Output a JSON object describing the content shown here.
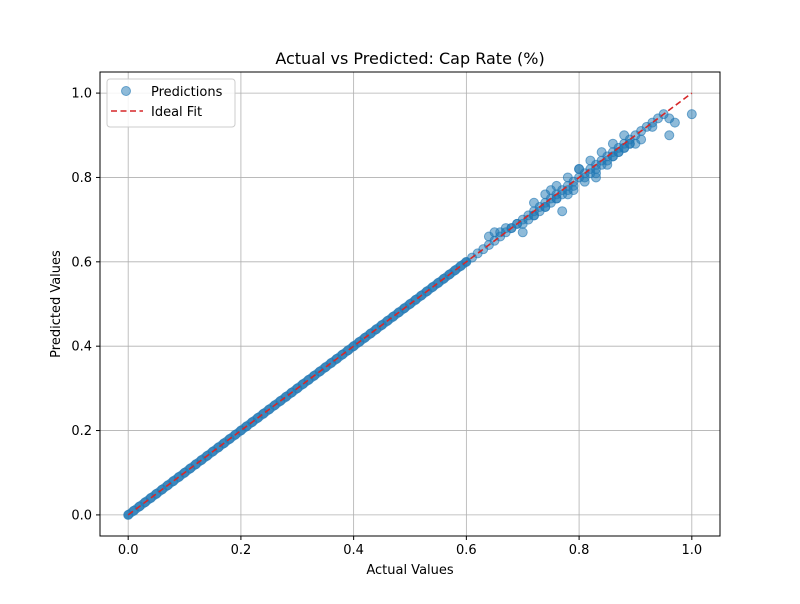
{
  "chart_data": {
    "type": "scatter",
    "title": "Actual vs Predicted: Cap Rate (%)",
    "xlabel": "Actual Values",
    "ylabel": "Predicted Values",
    "xlim": [
      -0.05,
      1.05
    ],
    "ylim": [
      -0.05,
      1.05
    ],
    "xticks": [
      0.0,
      0.2,
      0.4,
      0.6,
      0.8,
      1.0
    ],
    "yticks": [
      0.0,
      0.2,
      0.4,
      0.6,
      0.8,
      1.0
    ],
    "xtick_labels": [
      "0.0",
      "0.2",
      "0.4",
      "0.6",
      "0.8",
      "1.0"
    ],
    "ytick_labels": [
      "0.0",
      "0.2",
      "0.4",
      "0.6",
      "0.8",
      "1.0"
    ],
    "grid": true,
    "legend_position": "top-left",
    "colors": {
      "points": "#1f77b4",
      "ideal_fit": "#d62728",
      "grid": "#b0b0b0",
      "axes": "#000000"
    },
    "series": [
      {
        "name": "Predictions",
        "kind": "scatter",
        "x": [
          0.0,
          0.01,
          0.02,
          0.03,
          0.04,
          0.05,
          0.06,
          0.07,
          0.08,
          0.09,
          0.1,
          0.11,
          0.12,
          0.13,
          0.14,
          0.15,
          0.16,
          0.17,
          0.18,
          0.19,
          0.2,
          0.21,
          0.22,
          0.23,
          0.24,
          0.25,
          0.26,
          0.27,
          0.28,
          0.29,
          0.3,
          0.31,
          0.32,
          0.33,
          0.34,
          0.35,
          0.36,
          0.37,
          0.38,
          0.39,
          0.4,
          0.41,
          0.42,
          0.43,
          0.44,
          0.45,
          0.46,
          0.47,
          0.48,
          0.49,
          0.5,
          0.51,
          0.52,
          0.53,
          0.54,
          0.55,
          0.56,
          0.57,
          0.58,
          0.59,
          0.6,
          0.61,
          0.62,
          0.63,
          0.64,
          0.65,
          0.66,
          0.67,
          0.68,
          0.69,
          0.7,
          0.71,
          0.72,
          0.73,
          0.74,
          0.75,
          0.76,
          0.77,
          0.78,
          0.79,
          0.8,
          0.81,
          0.82,
          0.83,
          0.84,
          0.85,
          0.86,
          0.87,
          0.88,
          0.89,
          0.9,
          0.91,
          0.92,
          0.93,
          0.94,
          0.96,
          0.97,
          1.0,
          0.64,
          0.65,
          0.66,
          0.67,
          0.68,
          0.69,
          0.7,
          0.71,
          0.72,
          0.73,
          0.74,
          0.75,
          0.76,
          0.77,
          0.78,
          0.79,
          0.81,
          0.82,
          0.83,
          0.84,
          0.85,
          0.86,
          0.87,
          0.88,
          0.89,
          0.72,
          0.74,
          0.76,
          0.78,
          0.8,
          0.82,
          0.84,
          0.86,
          0.88,
          0.7,
          0.72,
          0.74,
          0.76,
          0.77,
          0.79,
          0.81,
          0.83,
          0.85,
          0.87,
          0.89,
          0.75,
          0.78,
          0.8,
          0.83,
          0.86,
          0.88,
          0.9,
          0.91,
          0.93,
          0.95,
          0.96
        ],
        "y": [
          0.0,
          0.01,
          0.02,
          0.03,
          0.04,
          0.05,
          0.06,
          0.07,
          0.08,
          0.09,
          0.1,
          0.11,
          0.12,
          0.13,
          0.14,
          0.15,
          0.16,
          0.17,
          0.18,
          0.19,
          0.2,
          0.21,
          0.22,
          0.23,
          0.24,
          0.25,
          0.26,
          0.27,
          0.28,
          0.29,
          0.3,
          0.31,
          0.32,
          0.33,
          0.34,
          0.35,
          0.36,
          0.37,
          0.38,
          0.39,
          0.4,
          0.41,
          0.42,
          0.43,
          0.44,
          0.45,
          0.46,
          0.47,
          0.48,
          0.49,
          0.5,
          0.51,
          0.52,
          0.53,
          0.54,
          0.55,
          0.56,
          0.57,
          0.58,
          0.59,
          0.6,
          0.61,
          0.62,
          0.63,
          0.64,
          0.65,
          0.66,
          0.67,
          0.68,
          0.69,
          0.7,
          0.71,
          0.72,
          0.73,
          0.74,
          0.75,
          0.76,
          0.77,
          0.78,
          0.79,
          0.8,
          0.81,
          0.82,
          0.83,
          0.84,
          0.85,
          0.86,
          0.87,
          0.88,
          0.89,
          0.9,
          0.91,
          0.92,
          0.93,
          0.94,
          0.9,
          0.93,
          0.95,
          0.66,
          0.67,
          0.67,
          0.68,
          0.68,
          0.69,
          0.69,
          0.7,
          0.71,
          0.72,
          0.73,
          0.74,
          0.75,
          0.76,
          0.77,
          0.78,
          0.8,
          0.81,
          0.82,
          0.83,
          0.84,
          0.85,
          0.86,
          0.87,
          0.88,
          0.74,
          0.76,
          0.78,
          0.8,
          0.82,
          0.84,
          0.86,
          0.88,
          0.9,
          0.67,
          0.71,
          0.73,
          0.75,
          0.72,
          0.77,
          0.79,
          0.8,
          0.83,
          0.86,
          0.88,
          0.77,
          0.76,
          0.82,
          0.81,
          0.85,
          0.87,
          0.88,
          0.89,
          0.92,
          0.95,
          0.94
        ]
      },
      {
        "name": "Ideal Fit",
        "kind": "line",
        "style": "dashed",
        "x": [
          0.0,
          1.0
        ],
        "y": [
          0.0,
          1.0
        ]
      }
    ]
  }
}
